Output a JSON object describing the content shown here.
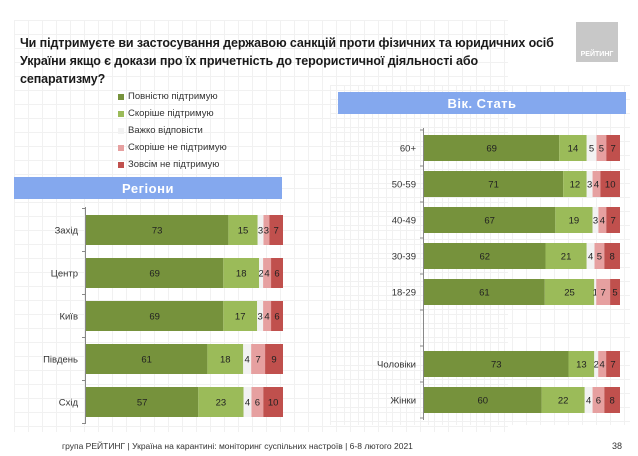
{
  "title": {
    "line1": "Чи підтримуєте ви застосування державою санкцій проти фізичних та юридичних осіб",
    "line2": "України якщо є докази про їх причетність до терористичної діяльності або сепаратизму?"
  },
  "logo_text": "РЕЙТИНГ",
  "footer": "група РЕЙТИНГ | Україна на карантині: моніторинг суспільних настроїв | 6-8 лютого 2021",
  "page_number": "38",
  "colors": {
    "full_support": "#76923c",
    "rather_support": "#9bbb59",
    "hard_to_say": "#f2f2f2",
    "rather_not_support": "#e6a0a0",
    "not_support": "#c0504d",
    "header_bg": "#84a8ee"
  },
  "legend": [
    {
      "label": "Повністю підтримую",
      "color": "#76923c"
    },
    {
      "label": "Скоріше підтримую",
      "color": "#9bbb59"
    },
    {
      "label": "Важко відповісти",
      "color": "#f2f2f2"
    },
    {
      "label": "Скоріше не підтримую",
      "color": "#e6a0a0"
    },
    {
      "label": "Зовсім не підтримую",
      "color": "#c0504d"
    }
  ],
  "chart_data": [
    {
      "type": "bar",
      "orientation": "horizontal",
      "stacked": "percent",
      "title": "Регіони",
      "categories": [
        "Захід",
        "Центр",
        "Київ",
        "Південь",
        "Схід"
      ],
      "series": [
        {
          "name": "Повністю підтримую",
          "values": [
            73,
            69,
            69,
            61,
            57
          ]
        },
        {
          "name": "Скоріше підтримую",
          "values": [
            15,
            18,
            17,
            18,
            23
          ]
        },
        {
          "name": "Важко відповісти",
          "values": [
            3,
            2,
            3,
            4,
            4
          ]
        },
        {
          "name": "Скоріше не підтримую",
          "values": [
            3,
            4,
            4,
            7,
            6
          ]
        },
        {
          "name": "Зовсім не підтримую",
          "values": [
            7,
            6,
            6,
            9,
            10
          ]
        }
      ],
      "legend": "top-center"
    },
    {
      "type": "bar",
      "orientation": "horizontal",
      "stacked": "percent",
      "title": "Вік. Стать",
      "categories": [
        "60+",
        "50-59",
        "40-49",
        "30-39",
        "18-29",
        "",
        "Чоловіки",
        "Жінки"
      ],
      "series": [
        {
          "name": "Повністю підтримую",
          "values": [
            69,
            71,
            67,
            62,
            61,
            null,
            73,
            60
          ]
        },
        {
          "name": "Скоріше підтримую",
          "values": [
            14,
            12,
            19,
            21,
            25,
            null,
            13,
            22
          ]
        },
        {
          "name": "Важко відповісти",
          "values": [
            5,
            3,
            3,
            4,
            1,
            null,
            2,
            4
          ]
        },
        {
          "name": "Скоріше не підтримую",
          "values": [
            5,
            4,
            4,
            5,
            7,
            null,
            4,
            6
          ]
        },
        {
          "name": "Зовсім не підтримую",
          "values": [
            7,
            10,
            7,
            8,
            5,
            null,
            7,
            8
          ]
        }
      ]
    }
  ],
  "headers": {
    "regions": "Регіони",
    "age_sex": "Вік. Стать"
  }
}
